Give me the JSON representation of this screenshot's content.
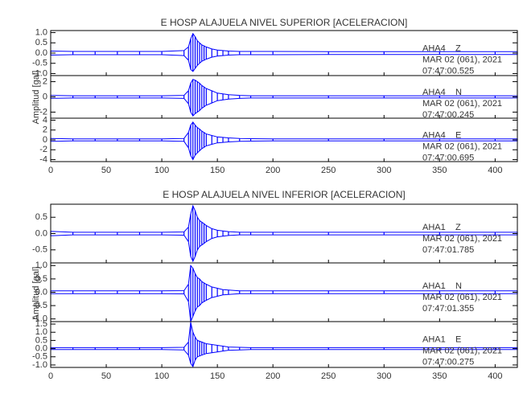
{
  "chart_data": [
    {
      "type": "line",
      "title": "E HOSP ALAJUELA NIVEL SUPERIOR [ACELERACION]",
      "ylabel": "Amplitud [gal]",
      "color": "#0000ff",
      "x": [
        0,
        20,
        40,
        60,
        80,
        100,
        120,
        124,
        126,
        128,
        130,
        132,
        134,
        136,
        138,
        140,
        145,
        150,
        155,
        160,
        170,
        180,
        200,
        250,
        300,
        350,
        400,
        420
      ],
      "xlim": [
        0,
        420
      ],
      "xticks": [
        0,
        50,
        100,
        150,
        200,
        250,
        300,
        350,
        400
      ],
      "panels": [
        {
          "label": [
            "AHA4    Z",
            "MAR 02 (061), 2021",
            "07:47:00.525"
          ],
          "ylim": [
            -1.1,
            1.1
          ],
          "yticks": [
            {
              "value": 1,
              "label": "1.0"
            },
            0.5,
            {
              "value": 0,
              "label": "0.0"
            },
            -0.5,
            {
              "value": -1,
              "label": "-1.0"
            }
          ],
          "max": [
            0.1,
            0.08,
            0.08,
            0.08,
            0.08,
            0.08,
            0.12,
            0.3,
            0.7,
            0.95,
            0.8,
            0.6,
            0.5,
            0.4,
            0.35,
            0.3,
            0.2,
            0.15,
            0.12,
            0.1,
            0.08,
            0.08,
            0.08,
            0.07,
            0.07,
            0.07,
            0.07,
            0.07
          ],
          "min": [
            -0.1,
            -0.08,
            -0.08,
            -0.08,
            -0.08,
            -0.08,
            -0.12,
            -0.35,
            -0.8,
            -0.9,
            -0.75,
            -0.6,
            -0.5,
            -0.4,
            -0.35,
            -0.3,
            -0.2,
            -0.15,
            -0.12,
            -0.1,
            -0.08,
            -0.08,
            -0.08,
            -0.07,
            -0.07,
            -0.07,
            -0.07,
            -0.07
          ]
        },
        {
          "label": [
            "AHA4    N",
            "MAR 02 (061), 2021",
            "07:47:00.245"
          ],
          "ylim": [
            -2.8,
            2.8
          ],
          "yticks": [
            2,
            0,
            -2
          ],
          "max": [
            0.2,
            0.15,
            0.15,
            0.15,
            0.15,
            0.15,
            0.2,
            0.8,
            1.8,
            2.3,
            2.2,
            2.0,
            1.8,
            1.5,
            1.3,
            1.1,
            0.8,
            0.5,
            0.4,
            0.3,
            0.2,
            0.15,
            0.15,
            0.15,
            0.15,
            0.15,
            0.15,
            0.15
          ],
          "min": [
            -0.2,
            -0.15,
            -0.15,
            -0.15,
            -0.15,
            -0.15,
            -0.2,
            -0.9,
            -2.0,
            -2.5,
            -2.2,
            -2.0,
            -1.8,
            -1.5,
            -1.3,
            -1.1,
            -0.8,
            -0.5,
            -0.4,
            -0.3,
            -0.2,
            -0.15,
            -0.15,
            -0.15,
            -0.15,
            -0.15,
            -0.15,
            -0.15
          ]
        },
        {
          "label": [
            "AHA4    E",
            "MAR 02 (061), 2021",
            "07:47:00.695"
          ],
          "ylim": [
            -4.4,
            4.4
          ],
          "yticks": [
            4,
            2,
            0,
            -2,
            -4
          ],
          "max": [
            0.3,
            0.2,
            0.2,
            0.2,
            0.2,
            0.2,
            0.3,
            1.5,
            3.0,
            3.6,
            3.0,
            2.5,
            2.2,
            1.8,
            1.5,
            1.2,
            0.9,
            0.6,
            0.5,
            0.4,
            0.3,
            0.25,
            0.2,
            0.2,
            0.2,
            0.2,
            0.2,
            0.2
          ],
          "min": [
            -0.3,
            -0.2,
            -0.2,
            -0.2,
            -0.2,
            -0.2,
            -0.3,
            -1.6,
            -3.2,
            -4.0,
            -3.1,
            -2.6,
            -2.2,
            -1.8,
            -1.5,
            -1.2,
            -0.9,
            -0.6,
            -0.5,
            -0.4,
            -0.3,
            -0.25,
            -0.2,
            -0.2,
            -0.2,
            -0.2,
            -0.2,
            -0.2
          ]
        }
      ]
    },
    {
      "type": "line",
      "title": "E HOSP ALAJUELA NIVEL INFERIOR [ACELERACION]",
      "ylabel": "Amplitud [gal]",
      "color": "#0000ff",
      "x": [
        0,
        20,
        40,
        60,
        80,
        100,
        120,
        124,
        126,
        128,
        130,
        132,
        134,
        136,
        138,
        140,
        145,
        150,
        155,
        160,
        170,
        180,
        200,
        250,
        300,
        350,
        400,
        420
      ],
      "xlim": [
        0,
        420
      ],
      "xticks": [
        0,
        50,
        100,
        150,
        200,
        250,
        300,
        350,
        400
      ],
      "panels": [
        {
          "label": [
            "AHA1    Z",
            "MAR 02 (061), 2021",
            "07:47:01.785"
          ],
          "ylim": [
            -0.9,
            0.9
          ],
          "yticks": [
            0.5,
            {
              "value": 0,
              "label": "0.0"
            },
            -0.5
          ],
          "max": [
            0.07,
            0.04,
            0.04,
            0.04,
            0.04,
            0.04,
            0.05,
            0.2,
            0.6,
            0.85,
            0.7,
            0.5,
            0.4,
            0.35,
            0.3,
            0.25,
            0.15,
            0.1,
            0.08,
            0.06,
            0.04,
            0.04,
            0.04,
            0.04,
            0.04,
            0.04,
            0.04,
            0.04
          ],
          "min": [
            -0.07,
            -0.04,
            -0.04,
            -0.04,
            -0.04,
            -0.04,
            -0.05,
            -0.25,
            -0.7,
            -0.85,
            -0.7,
            -0.5,
            -0.4,
            -0.35,
            -0.3,
            -0.25,
            -0.15,
            -0.1,
            -0.08,
            -0.06,
            -0.04,
            -0.04,
            -0.04,
            -0.04,
            -0.04,
            -0.04,
            -0.04,
            -0.04
          ]
        },
        {
          "label": [
            "AHA1    N",
            "MAR 02 (061), 2021",
            "07:47:01.355"
          ],
          "ylim": [
            -1.1,
            1.1
          ],
          "yticks": [
            {
              "value": 1,
              "label": "1.0"
            },
            0.5,
            {
              "value": 0,
              "label": "0.0"
            },
            -0.5,
            {
              "value": -1,
              "label": "-1.0"
            }
          ],
          "max": [
            0.05,
            0.05,
            0.05,
            0.05,
            0.05,
            0.05,
            0.06,
            0.3,
            1.0,
            0.9,
            0.7,
            0.55,
            0.5,
            0.4,
            0.35,
            0.3,
            0.2,
            0.15,
            0.1,
            0.08,
            0.05,
            0.05,
            0.05,
            0.05,
            0.05,
            0.05,
            0.05,
            0.05
          ],
          "min": [
            -0.05,
            -0.05,
            -0.05,
            -0.05,
            -0.05,
            -0.05,
            -0.06,
            -0.35,
            -1.1,
            -0.9,
            -0.7,
            -0.55,
            -0.5,
            -0.4,
            -0.35,
            -0.3,
            -0.2,
            -0.15,
            -0.1,
            -0.08,
            -0.05,
            -0.05,
            -0.05,
            -0.05,
            -0.05,
            -0.05,
            -0.05,
            -0.05
          ]
        },
        {
          "label": [
            "AHA1    E",
            "MAR 02 (061), 2021",
            "07:47:00.275"
          ],
          "ylim": [
            -1.15,
            1.65
          ],
          "yticks": [
            1.5,
            {
              "value": 1,
              "label": "1.0"
            },
            0.5,
            {
              "value": 0,
              "label": "0.0"
            },
            -0.5,
            {
              "value": -1,
              "label": "-1.0"
            }
          ],
          "max": [
            0.06,
            0.06,
            0.06,
            0.06,
            0.06,
            0.06,
            0.08,
            0.4,
            1.6,
            1.0,
            0.7,
            0.5,
            0.45,
            0.4,
            0.35,
            0.3,
            0.25,
            0.2,
            0.15,
            0.1,
            0.08,
            0.06,
            0.06,
            0.06,
            0.06,
            0.06,
            0.06,
            0.06
          ],
          "min": [
            -0.06,
            -0.06,
            -0.06,
            -0.06,
            -0.06,
            -0.06,
            -0.08,
            -0.4,
            -0.9,
            -1.1,
            -0.7,
            -0.5,
            -0.45,
            -0.4,
            -0.35,
            -0.3,
            -0.25,
            -0.2,
            -0.15,
            -0.1,
            -0.08,
            -0.06,
            -0.06,
            -0.06,
            -0.06,
            -0.06,
            -0.06,
            -0.06
          ]
        }
      ]
    }
  ]
}
